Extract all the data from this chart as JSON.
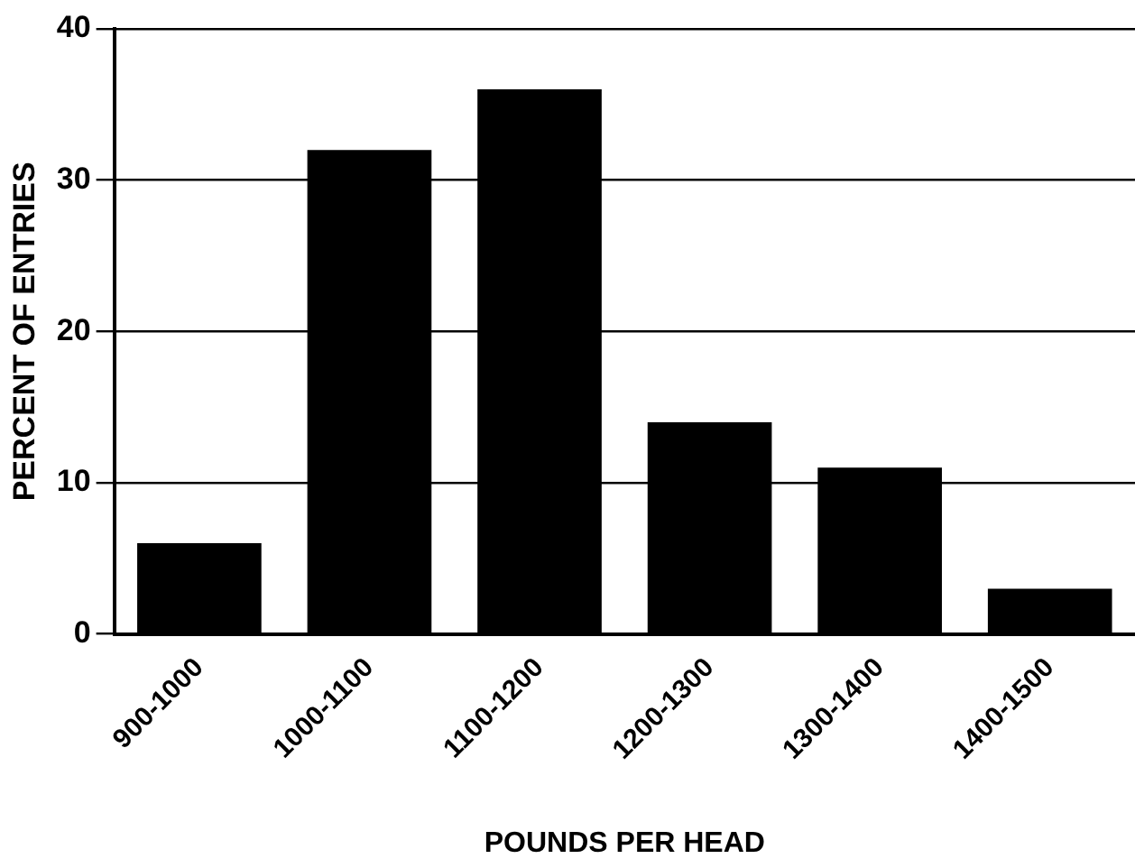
{
  "chart_data": {
    "type": "bar",
    "xlabel": "POUNDS PER HEAD",
    "ylabel": "PERCENT OF ENTRIES",
    "categories": [
      "900-1000",
      "1000-1100",
      "1100-1200",
      "1200-1300",
      "1300-1400",
      "1400-1500"
    ],
    "values": [
      6,
      32,
      36,
      14,
      11,
      3
    ],
    "color": "#000000",
    "ylim": [
      0,
      40
    ],
    "yticks": [
      0,
      10,
      20,
      30,
      40
    ],
    "grid": "y",
    "legend": false
  }
}
